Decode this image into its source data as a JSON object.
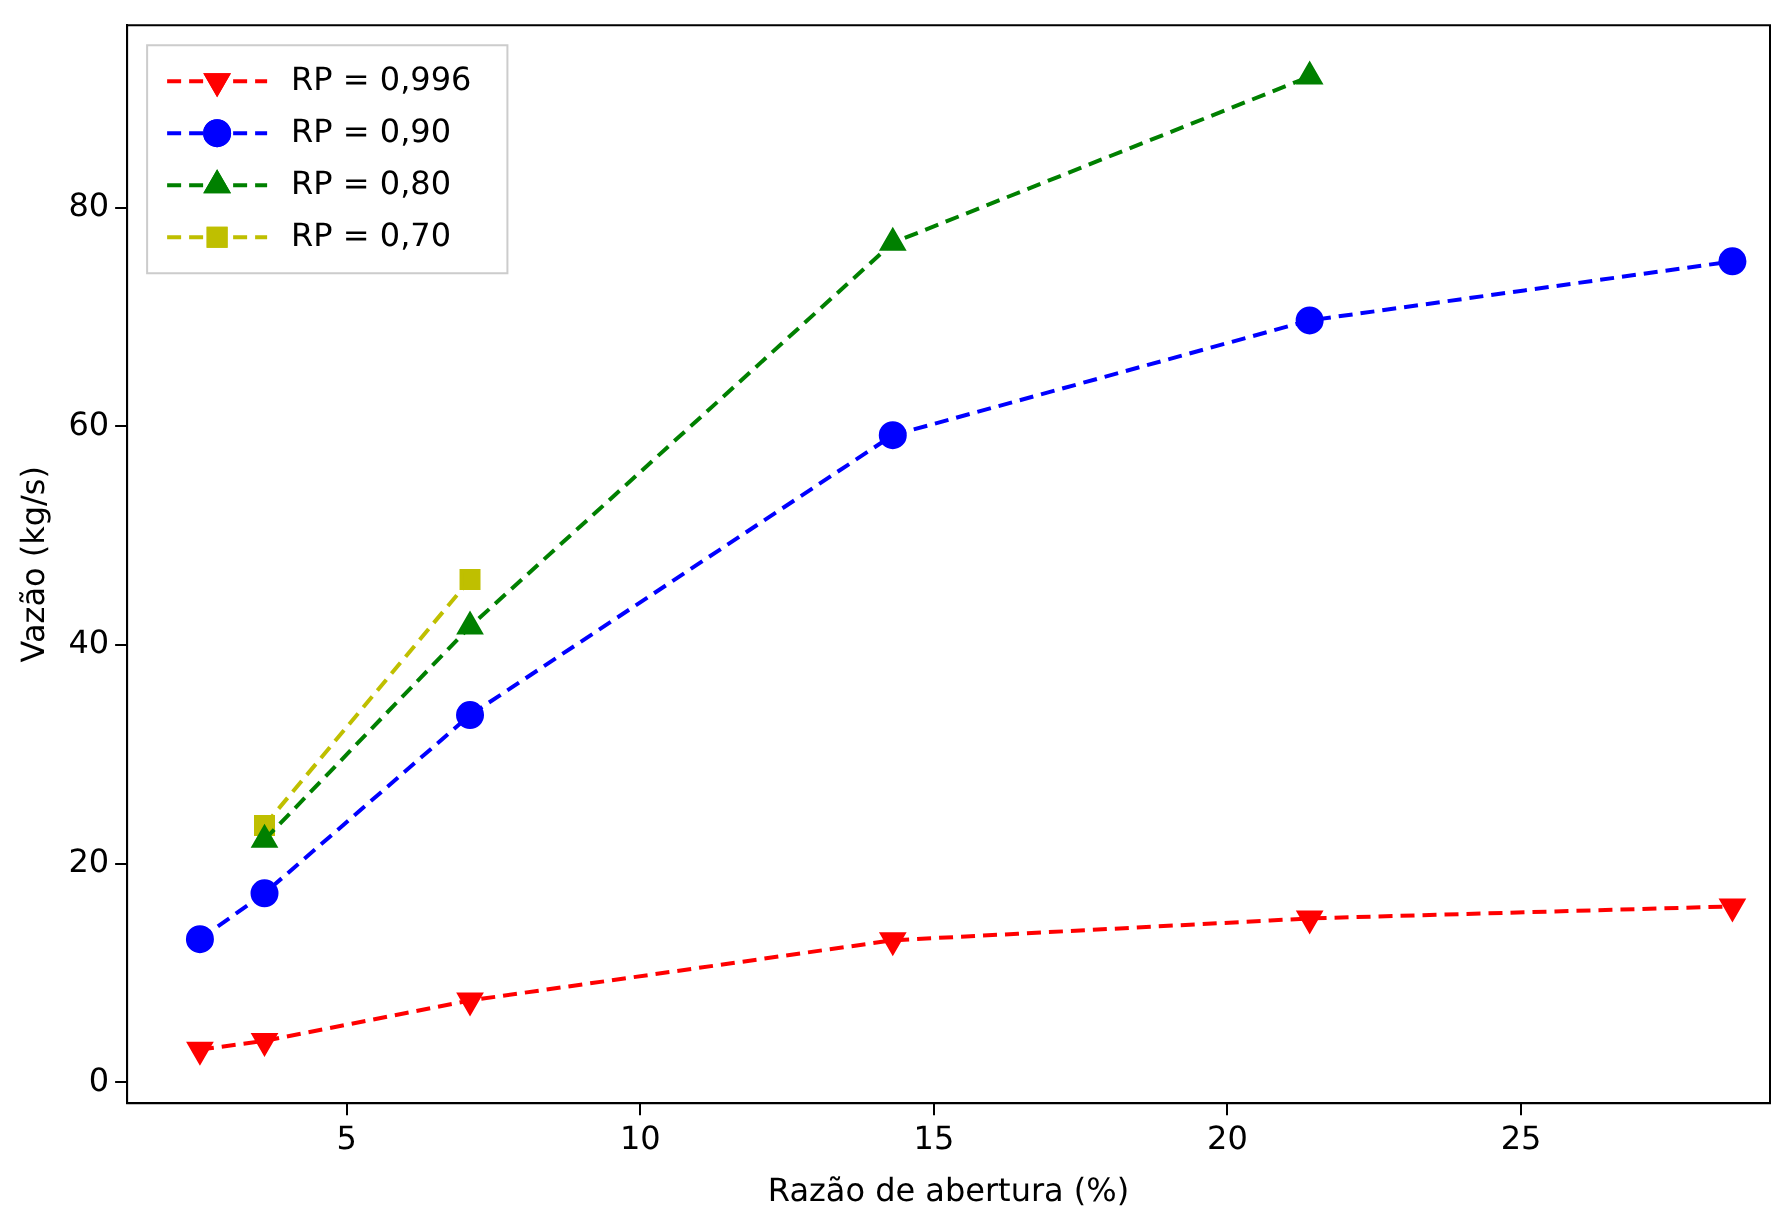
{
  "chart_data": {
    "type": "line",
    "xlabel": "Razão de abertura (%)",
    "ylabel": "Vazão (kg/s)",
    "xlim": [
      1.26,
      29.24
    ],
    "xticks": [
      5,
      10,
      15,
      20,
      25
    ],
    "ylim": [
      -1.9,
      96.7
    ],
    "yticks": [
      0,
      20,
      40,
      60,
      80
    ],
    "grid": false,
    "legend": "top left",
    "line_style": "dashed",
    "series": [
      {
        "name": "RP = 0,996",
        "color": "#ff0000",
        "marker": "triangle_down",
        "x": [
          2.5,
          3.6,
          7.1,
          14.3,
          21.4,
          28.6
        ],
        "values": [
          3.0,
          3.8,
          7.5,
          13.0,
          15.0,
          16.1
        ]
      },
      {
        "name": "RP = 0,90",
        "color": "#0000ff",
        "marker": "circle",
        "x": [
          2.5,
          3.6,
          7.1,
          14.3,
          21.4,
          28.6
        ],
        "values": [
          13.1,
          17.3,
          33.6,
          59.2,
          69.7,
          75.1
        ]
      },
      {
        "name": "RP = 0,80",
        "color": "#008000",
        "marker": "triangle",
        "x": [
          3.6,
          7.1,
          14.3,
          21.4
        ],
        "values": [
          22.2,
          41.7,
          76.8,
          92.0
        ]
      },
      {
        "name": "RP = 0,70",
        "color": "#bfbf00",
        "marker": "square",
        "x": [
          3.6,
          7.1
        ],
        "values": [
          23.5,
          46.0
        ]
      }
    ]
  }
}
